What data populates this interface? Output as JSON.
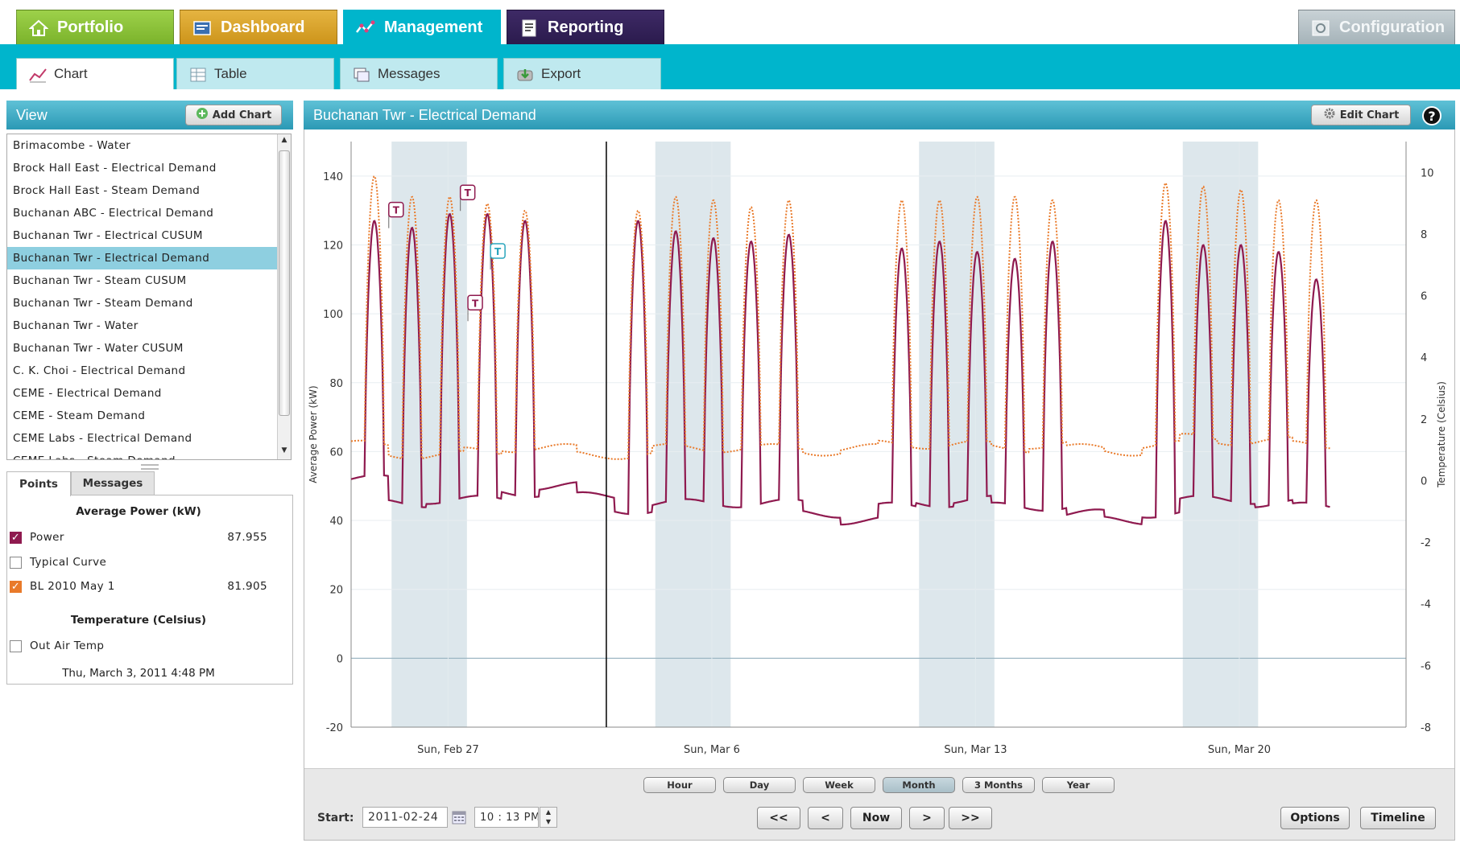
{
  "app": {
    "main_tabs": [
      "Portfolio",
      "Dashboard",
      "Management",
      "Reporting"
    ],
    "config_tab": "Configuration",
    "sub_tabs": [
      "Chart",
      "Table",
      "Messages",
      "Export"
    ]
  },
  "view_panel": {
    "title": "View",
    "add_chart_label": "Add Chart",
    "items": [
      "Brimacombe - Water",
      "Brock Hall East - Electrical Demand",
      "Brock Hall East - Steam Demand",
      "Buchanan ABC - Electrical Demand",
      "Buchanan Twr - Electrical CUSUM",
      "Buchanan Twr - Electrical Demand",
      "Buchanan Twr - Steam CUSUM",
      "Buchanan Twr - Steam Demand",
      "Buchanan Twr - Water",
      "Buchanan Twr - Water CUSUM",
      "C. K. Choi - Electrical Demand",
      "CEME - Electrical Demand",
      "CEME - Steam Demand",
      "CEME Labs - Electrical Demand",
      "CEME Labs - Steam Demand"
    ],
    "selected_index": 5
  },
  "points_panel": {
    "tabs": [
      "Points",
      "Messages"
    ],
    "section1": "Average Power (kW)",
    "rows": [
      {
        "label": "Power",
        "value": "87.955",
        "checked": true,
        "color": "#8f1a4f"
      },
      {
        "label": "Typical Curve",
        "value": "",
        "checked": false,
        "color": ""
      },
      {
        "label": "BL 2010 May 1",
        "value": "81.905",
        "checked": true,
        "color": "#e97a2a"
      }
    ],
    "section2": "Temperature (Celsius)",
    "temp_row": {
      "label": "Out Air Temp",
      "checked": false
    },
    "timestamp": "Thu, March 3, 2011 4:48 PM"
  },
  "chart_panel": {
    "title": "Buchanan Twr - Electrical Demand",
    "edit_label": "Edit Chart",
    "help_icon": "?"
  },
  "chart_data": {
    "type": "line",
    "title": "Buchanan Twr - Electrical Demand",
    "ylabel": "Average Power (kW)",
    "y2label": "Temperature (Celsius)",
    "ylim": [
      -20,
      150
    ],
    "y2lim": [
      -8,
      11
    ],
    "yticks": [
      -20,
      0,
      20,
      40,
      60,
      80,
      100,
      120,
      140
    ],
    "y2ticks": [
      -8,
      -6,
      -4,
      -2,
      0,
      2,
      4,
      6,
      8,
      10
    ],
    "x_start": "2011-02-24 22:13",
    "x_end": "2011-03-24 22:13",
    "x_tick_labels": [
      "Sun, Feb 27",
      "Sun, Mar 6",
      "Sun, Mar 13",
      "Sun, Mar 20"
    ],
    "weekend_shading": true,
    "cursor": "2011-03-03 16:48",
    "series": [
      {
        "name": "Power",
        "color": "#8f1a4f",
        "style": "solid",
        "daily_peak": [
          127,
          125,
          129,
          129,
          127,
          100,
          100,
          127,
          124,
          122,
          121,
          123,
          100,
          100,
          119,
          121,
          118,
          116,
          121,
          100,
          100,
          127,
          120,
          120,
          118,
          110
        ],
        "base": [
          52,
          45,
          46,
          46,
          48,
          50,
          47,
          43,
          45,
          45,
          45,
          45,
          42,
          40,
          44,
          45,
          46,
          44,
          44,
          42,
          40,
          42,
          46,
          46,
          45,
          44
        ]
      },
      {
        "name": "BL 2010 May 1",
        "color": "#e97a2a",
        "style": "dotted",
        "daily_peak": [
          140,
          134,
          134,
          132,
          130,
          100,
          100,
          130,
          134,
          133,
          131,
          133,
          100,
          100,
          133,
          133,
          134,
          134,
          133,
          100,
          100,
          138,
          137,
          136,
          133,
          133
        ],
        "base": [
          62,
          59,
          59,
          60,
          61,
          61,
          59,
          59,
          61,
          61,
          61,
          61,
          60,
          61,
          62,
          62,
          62,
          61,
          62,
          61,
          60,
          62,
          64,
          63,
          63,
          62
        ]
      }
    ],
    "markers": [
      {
        "label": "T",
        "color": "#8f1a4f",
        "day": 1.0,
        "kw": 130
      },
      {
        "label": "T",
        "color": "#8f1a4f",
        "day": 2.9,
        "kw": 135
      },
      {
        "label": "T",
        "color": "#8f1a4f",
        "day": 3.1,
        "kw": 103
      },
      {
        "label": "T",
        "color": "#2aa5bd",
        "day": 3.7,
        "kw": 118
      }
    ]
  },
  "controls": {
    "ranges": [
      "Hour",
      "Day",
      "Week",
      "Month",
      "3 Months",
      "Year"
    ],
    "active_range": "Month",
    "start_label": "Start:",
    "start_date": "2011-02-24",
    "start_time": "10 : 13 PM",
    "nav": [
      "<<",
      "<",
      "Now",
      ">",
      ">>"
    ],
    "options_label": "Options",
    "timeline_label": "Timeline"
  }
}
